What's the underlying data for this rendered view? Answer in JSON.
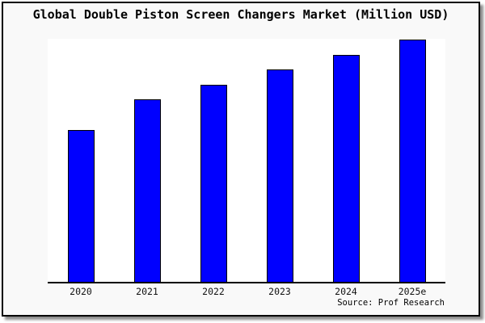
{
  "page": {
    "background_color": "#f9f9f9",
    "border_color": "#000000",
    "plot_background_color": "#ffffff"
  },
  "title": "Global Double Piston Screen Changers Market (Million USD)",
  "source_note": "Source: Prof Research",
  "chart_data": {
    "type": "bar",
    "title": "Global Double Piston Screen Changers Market (Million USD)",
    "categories": [
      "2020",
      "2021",
      "2022",
      "2023",
      "2024",
      "2025e"
    ],
    "values": [
      62.8,
      75.2,
      81.5,
      87.8,
      93.7,
      100
    ],
    "values_note": "No numeric y-axis is rendered; values are bar heights relative to the tallest bar (2025e = 100).",
    "xlabel": "",
    "ylabel": "",
    "ylim": [
      0,
      100.7
    ],
    "grid": false,
    "legend": false,
    "y_axis_ticks_shown": false,
    "bar_color": "#0000ff",
    "bar_border_color": "#000000",
    "source": "Source: Prof Research"
  }
}
